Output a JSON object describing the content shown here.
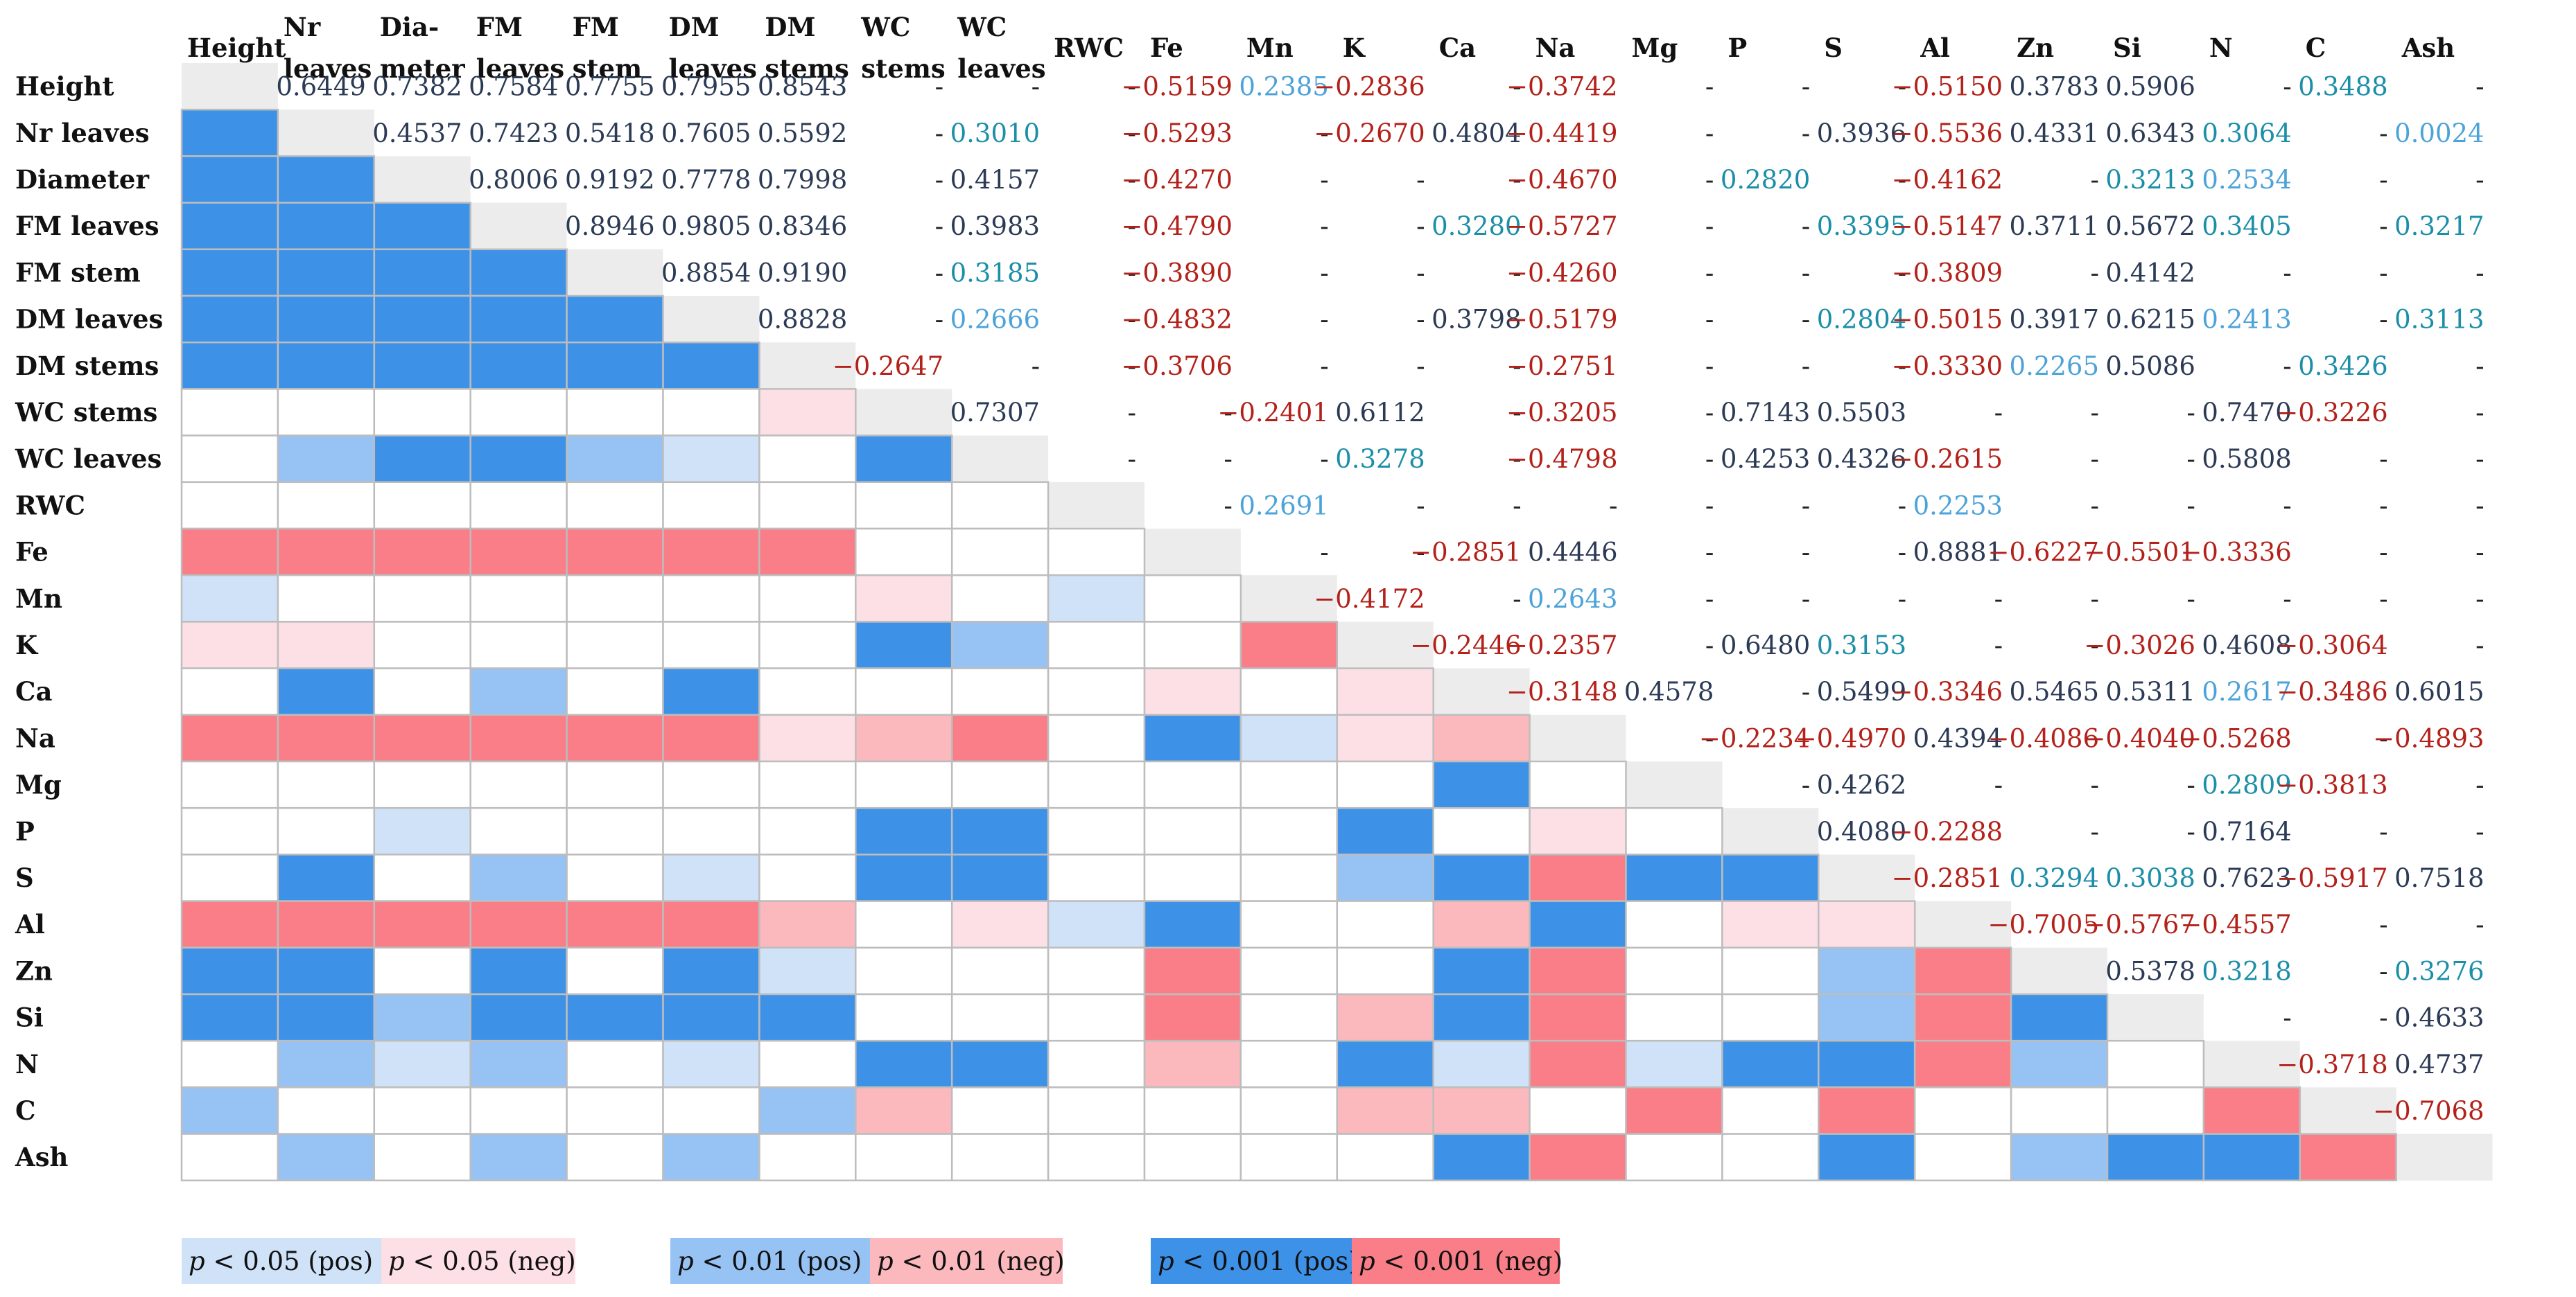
{
  "chart_data": {
    "type": "heatmap",
    "title": "",
    "variables": [
      "Height",
      "Nr leaves",
      "Diameter",
      "FM leaves",
      "FM stem",
      "DM leaves",
      "DM stems",
      "WC stems",
      "WC leaves",
      "RWC",
      "Fe",
      "Mn",
      "K",
      "Ca",
      "Na",
      "Mg",
      "P",
      "S",
      "Al",
      "Zn",
      "Si",
      "N",
      "C",
      "Ash"
    ],
    "col_headers": [
      [
        "Height"
      ],
      [
        "Nr",
        "leaves"
      ],
      [
        "Dia-",
        "meter"
      ],
      [
        "FM",
        "leaves"
      ],
      [
        "FM",
        "stem"
      ],
      [
        "DM",
        "leaves"
      ],
      [
        "DM",
        "stems"
      ],
      [
        "WC",
        "stems"
      ],
      [
        "WC",
        "leaves"
      ],
      [
        "RWC"
      ],
      [
        "Fe"
      ],
      [
        "Mn"
      ],
      [
        "K"
      ],
      [
        "Ca"
      ],
      [
        "Na"
      ],
      [
        "Mg"
      ],
      [
        "P"
      ],
      [
        "S"
      ],
      [
        "Al"
      ],
      [
        "Zn"
      ],
      [
        "Si"
      ],
      [
        "N"
      ],
      [
        "C"
      ],
      [
        "Ash"
      ]
    ],
    "row_headers": [
      "Height",
      "Nr leaves",
      "Diameter",
      "FM leaves",
      "FM stem",
      "DM leaves",
      "DM stems",
      "WC stems",
      "WC leaves",
      "RWC",
      "Fe",
      "Mn",
      "K",
      "Ca",
      "Na",
      "Mg",
      "P",
      "S",
      "Al",
      "Zn",
      "Si",
      "N",
      "C",
      "Ash"
    ],
    "upper_triangle": [
      [
        "0.6449",
        "0.7382",
        "0.7584",
        "0.7755",
        "0.7955",
        "0.8543",
        "-",
        "-",
        "-",
        "−0.5159",
        "0.2385",
        "−0.2836",
        "-",
        "−0.3742",
        "-",
        "-",
        "-",
        "−0.5150",
        "0.3783",
        "0.5906",
        "-",
        "0.3488",
        "-"
      ],
      [
        "0.4537",
        "0.7423",
        "0.5418",
        "0.7605",
        "0.5592",
        "-",
        "0.3010",
        "-",
        "−0.5293",
        "-",
        "−0.2670",
        "0.4804",
        "−0.4419",
        "-",
        "-",
        "0.3936",
        "−0.5536",
        "0.4331",
        "0.6343",
        "0.3064",
        "-",
        "0.0024"
      ],
      [
        "0.8006",
        "0.9192",
        "0.7778",
        "0.7998",
        "-",
        "0.4157",
        "-",
        "−0.4270",
        "-",
        "-",
        "-",
        "−0.4670",
        "-",
        "0.2820",
        "-",
        "−0.4162",
        "-",
        "0.3213",
        "0.2534",
        "-",
        "-"
      ],
      [
        "0.8946",
        "0.9805",
        "0.8346",
        "-",
        "0.3983",
        "-",
        "−0.4790",
        "-",
        "-",
        "0.3280",
        "−0.5727",
        "-",
        "-",
        "0.3395",
        "−0.5147",
        "0.3711",
        "0.5672",
        "0.3405",
        "-",
        "0.3217"
      ],
      [
        "0.8854",
        "0.9190",
        "-",
        "0.3185",
        "-",
        "−0.3890",
        "-",
        "-",
        "-",
        "−0.4260",
        "-",
        "-",
        "-",
        "−0.3809",
        "-",
        "0.4142",
        "-",
        "-",
        "-"
      ],
      [
        "0.8828",
        "-",
        "0.2666",
        "-",
        "−0.4832",
        "-",
        "-",
        "0.3798",
        "−0.5179",
        "-",
        "-",
        "0.2804",
        "−0.5015",
        "0.3917",
        "0.6215",
        "0.2413",
        "-",
        "0.3113"
      ],
      [
        "−0.2647",
        "-",
        "-",
        "−0.3706",
        "-",
        "-",
        "-",
        "−0.2751",
        "-",
        "-",
        "-",
        "−0.3330",
        "0.2265",
        "0.5086",
        "-",
        "0.3426",
        "-"
      ],
      [
        "0.7307",
        "-",
        "-",
        "−0.2401",
        "0.6112",
        "-",
        "−0.3205",
        "-",
        "0.7143",
        "0.5503",
        "-",
        "-",
        "-",
        "0.7470",
        "−0.3226",
        "-"
      ],
      [
        "-",
        "-",
        "-",
        "0.3278",
        "-",
        "−0.4798",
        "-",
        "0.4253",
        "0.4326",
        "−0.2615",
        "-",
        "-",
        "0.5808",
        "-",
        "-"
      ],
      [
        "-",
        "0.2691",
        "-",
        "-",
        "-",
        "-",
        "-",
        "-",
        "0.2253",
        "-",
        "-",
        "-",
        "-",
        "-"
      ],
      [
        "-",
        "-",
        "−0.2851",
        "0.4446",
        "-",
        "-",
        "-",
        "0.8881",
        "−0.6227",
        "−0.5501",
        "−0.3336",
        "-",
        "-"
      ],
      [
        "−0.4172",
        "-",
        "0.2643",
        "-",
        "-",
        "-",
        "-",
        "-",
        "-",
        "-",
        "-",
        "-"
      ],
      [
        "−0.2446",
        "−0.2357",
        "-",
        "0.6480",
        "0.3153",
        "-",
        "-",
        "−0.3026",
        "0.4608",
        "−0.3064",
        "-"
      ],
      [
        "−0.3148",
        "0.4578",
        "-",
        "0.5499",
        "−0.3346",
        "0.5465",
        "0.5311",
        "0.2617",
        "−0.3486",
        "0.6015"
      ],
      [
        "-",
        "−0.2234",
        "−0.4970",
        "0.4394",
        "−0.4086",
        "−0.4040",
        "−0.5268",
        "-",
        "−0.4893"
      ],
      [
        "-",
        "0.4262",
        "-",
        "-",
        "-",
        "0.2809",
        "−0.3813",
        "-"
      ],
      [
        "0.4080",
        "−0.2288",
        "-",
        "-",
        "0.7164",
        "-",
        "-"
      ],
      [
        "−0.2851",
        "0.3294",
        "0.3038",
        "0.7623",
        "−0.5917",
        "0.7518"
      ],
      [
        "−0.7005",
        "−0.5767",
        "−0.4557",
        "-",
        "-"
      ],
      [
        "0.5378",
        "0.3218",
        "-",
        "0.3276"
      ],
      [
        "-",
        "-",
        "0.4633"
      ],
      [
        "−0.3718",
        "0.4737"
      ],
      [
        "−0.7068"
      ]
    ],
    "significance_codes": {
      "0": "not significant",
      "1": "p < 0.05 (pos)",
      "2": "p < 0.01 (pos)",
      "3": "p < 0.001 (pos)",
      "-1": "p < 0.05 (neg)",
      "-2": "p < 0.01 (neg)",
      "-3": "p < 0.001 (neg)"
    },
    "lower_triangle_significance": [
      [],
      [
        3
      ],
      [
        3,
        3
      ],
      [
        3,
        3,
        3
      ],
      [
        3,
        3,
        3,
        3
      ],
      [
        3,
        3,
        3,
        3,
        3
      ],
      [
        3,
        3,
        3,
        3,
        3,
        3
      ],
      [
        0,
        0,
        0,
        0,
        0,
        0,
        -1
      ],
      [
        0,
        2,
        3,
        3,
        2,
        1,
        0,
        3
      ],
      [
        0,
        0,
        0,
        0,
        0,
        0,
        0,
        0,
        0
      ],
      [
        -3,
        -3,
        -3,
        -3,
        -3,
        -3,
        -3,
        0,
        0,
        0
      ],
      [
        1,
        0,
        0,
        0,
        0,
        0,
        0,
        -1,
        0,
        1,
        0
      ],
      [
        -1,
        -1,
        0,
        0,
        0,
        0,
        0,
        3,
        2,
        0,
        0,
        -3
      ],
      [
        0,
        3,
        0,
        2,
        0,
        3,
        0,
        0,
        0,
        0,
        -1,
        0,
        -1
      ],
      [
        -3,
        -3,
        -3,
        -3,
        -3,
        -3,
        -1,
        -2,
        -3,
        0,
        3,
        1,
        -1,
        -2
      ],
      [
        0,
        0,
        0,
        0,
        0,
        0,
        0,
        0,
        0,
        0,
        0,
        0,
        0,
        3,
        0
      ],
      [
        0,
        0,
        1,
        0,
        0,
        0,
        0,
        3,
        3,
        0,
        0,
        0,
        3,
        0,
        -1,
        0
      ],
      [
        0,
        3,
        0,
        2,
        0,
        1,
        0,
        3,
        3,
        0,
        0,
        0,
        2,
        3,
        -3,
        3,
        3
      ],
      [
        -3,
        -3,
        -3,
        -3,
        -3,
        -3,
        -2,
        0,
        -1,
        1,
        3,
        0,
        0,
        -2,
        3,
        0,
        -1,
        -1
      ],
      [
        3,
        3,
        0,
        3,
        0,
        3,
        1,
        0,
        0,
        0,
        -3,
        0,
        0,
        3,
        -3,
        0,
        0,
        2,
        -3
      ],
      [
        3,
        3,
        2,
        3,
        3,
        3,
        3,
        0,
        0,
        0,
        -3,
        0,
        -2,
        3,
        -3,
        0,
        0,
        2,
        -3,
        3
      ],
      [
        0,
        2,
        1,
        2,
        0,
        1,
        0,
        3,
        3,
        0,
        -2,
        0,
        3,
        1,
        -3,
        1,
        3,
        3,
        -3,
        2,
        0
      ],
      [
        2,
        0,
        0,
        0,
        0,
        0,
        2,
        -2,
        0,
        0,
        0,
        0,
        -2,
        -2,
        0,
        -3,
        0,
        -3,
        0,
        0,
        0,
        -3
      ],
      [
        0,
        2,
        0,
        2,
        0,
        2,
        0,
        0,
        0,
        0,
        0,
        0,
        0,
        3,
        -3,
        0,
        0,
        3,
        0,
        2,
        3,
        3,
        -3
      ]
    ],
    "value_colors": {
      "neg": "#b3211a",
      "pos_strong": "#2b3a55",
      "pos_medium": "#1b8ea8",
      "pos_weak": "#4da3d9",
      "none": "#222222"
    }
  },
  "colors": {
    "diagonal": "#ececec",
    "pos_1": "#cfe2f8",
    "pos_2": "#97c2f4",
    "pos_3": "#3d92e8",
    "neg_1": "#fde0e6",
    "neg_2": "#fbb8bd",
    "neg_3": "#f97e87",
    "grid": "#bdbdbd"
  },
  "legend": [
    {
      "p": "p",
      "text": " < 0.05 (pos)",
      "code": 1
    },
    {
      "p": "p",
      "text": " < 0.05 (neg)",
      "code": -1
    },
    {
      "p": "p",
      "text": " < 0.01 (pos)",
      "code": 2
    },
    {
      "p": "p",
      "text": " < 0.01 (neg)",
      "code": -2
    },
    {
      "p": "p",
      "text": " < 0.001 (pos)",
      "code": 3
    },
    {
      "p": "p",
      "text": " < 0.001 (neg)",
      "code": -3
    }
  ]
}
